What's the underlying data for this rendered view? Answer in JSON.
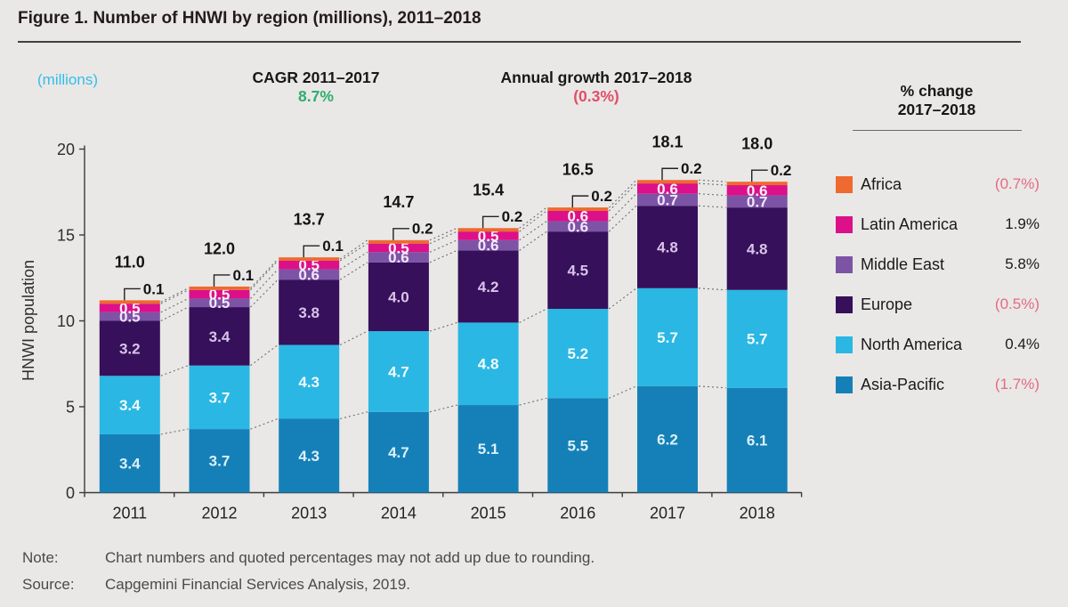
{
  "title": "Figure 1. Number of HNWI by region (millions), 2011–2018",
  "header": {
    "units_label": "(millions)",
    "cagr_label": "CAGR 2011–2017",
    "cagr_value": "8.7%",
    "annual_growth_label": "Annual growth 2017–2018",
    "annual_growth_value": "(0.3%)"
  },
  "legend": {
    "header_line1": "% change",
    "header_line2": "2017–2018",
    "items": [
      {
        "label": "Africa",
        "value": "(0.7%)",
        "color": "#ee6a2e",
        "negative": true
      },
      {
        "label": "Latin America",
        "value": "1.9%",
        "color": "#dc1089",
        "negative": false
      },
      {
        "label": "Middle East",
        "value": "5.8%",
        "color": "#7d53a6",
        "negative": false
      },
      {
        "label": "Europe",
        "value": "(0.5%)",
        "color": "#36105a",
        "negative": true
      },
      {
        "label": "North America",
        "value": "0.4%",
        "color": "#2ab7e3",
        "negative": false
      },
      {
        "label": "Asia-Pacific",
        "value": "(1.7%)",
        "color": "#1580b7",
        "negative": true
      }
    ]
  },
  "chart_data": {
    "type": "bar",
    "subtype": "stacked",
    "title": "Number of HNWI by region (millions), 2011–2018",
    "ylabel": "HNWI population",
    "ylim": [
      0,
      20
    ],
    "yticks": [
      0,
      5,
      10,
      15,
      20
    ],
    "grid": false,
    "categories": [
      "2011",
      "2012",
      "2013",
      "2014",
      "2015",
      "2016",
      "2017",
      "2018"
    ],
    "totals": [
      "11.0",
      "12.0",
      "13.7",
      "14.7",
      "15.4",
      "16.5",
      "18.1",
      "18.0"
    ],
    "series": [
      {
        "name": "Asia-Pacific",
        "color": "#1580b7",
        "label_color": "#dcf1fa",
        "values": [
          3.4,
          3.7,
          4.3,
          4.7,
          5.1,
          5.5,
          6.2,
          6.1
        ]
      },
      {
        "name": "North America",
        "color": "#2ab7e3",
        "label_color": "#f2fbfe",
        "values": [
          3.4,
          3.7,
          4.3,
          4.7,
          4.8,
          5.2,
          5.7,
          5.7
        ]
      },
      {
        "name": "Europe",
        "color": "#36105a",
        "label_color": "#d9c3ea",
        "values": [
          3.2,
          3.4,
          3.8,
          4.0,
          4.2,
          4.5,
          4.8,
          4.8
        ]
      },
      {
        "name": "Middle East",
        "color": "#7d53a6",
        "label_color": "#f1e6fa",
        "values": [
          0.5,
          0.5,
          0.6,
          0.6,
          0.6,
          0.6,
          0.7,
          0.7
        ]
      },
      {
        "name": "Latin America",
        "color": "#dc1089",
        "label_color": "#fdeef8",
        "values": [
          0.5,
          0.5,
          0.5,
          0.5,
          0.5,
          0.6,
          0.6,
          0.6
        ]
      },
      {
        "name": "Africa",
        "color": "#ee6a2e",
        "label_color": "#141414",
        "callout": true,
        "values": [
          0.1,
          0.1,
          0.1,
          0.2,
          0.2,
          0.2,
          0.2,
          0.2
        ]
      }
    ]
  },
  "notes": {
    "note_label": "Note:",
    "note_text": "Chart numbers and quoted percentages may not add up due to rounding.",
    "source_label": "Source:",
    "source_text": "Capgemini Financial Services Analysis, 2019."
  }
}
